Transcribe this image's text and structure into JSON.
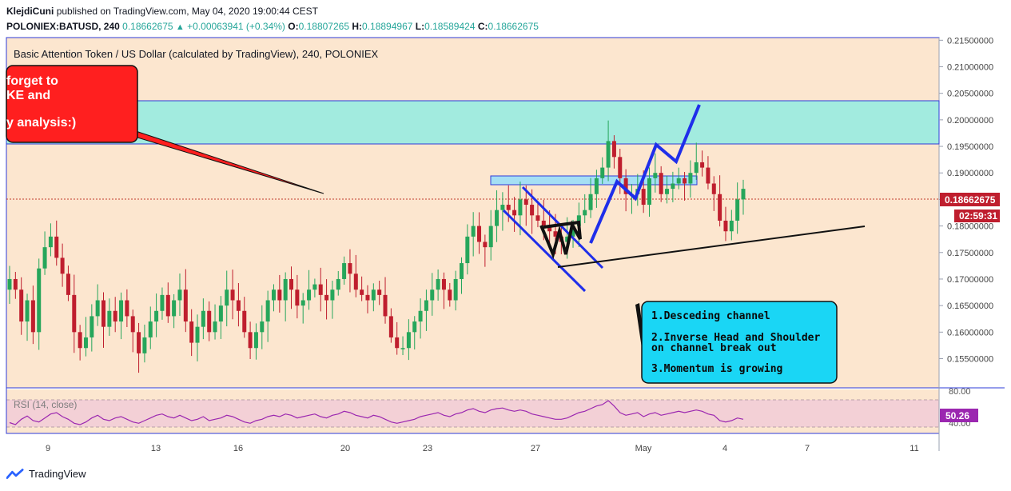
{
  "header": {
    "publisher": "KlejdiCuni",
    "published_text": "published on TradingView.com, May 04, 2020 19:00:44 CEST",
    "symbol": "POLONIEX:BATUSD, 240",
    "last": "0.18662675",
    "change": "+0.00063941 (+0.34%)",
    "o_label": "O:",
    "o": "0.18807265",
    "h_label": "H:",
    "h": "0.18894967",
    "l_label": "L:",
    "l": "0.18589424",
    "c_label": "C:",
    "c": "0.18662675"
  },
  "chart_data": {
    "type": "candlestick",
    "title": "Basic Attention Token / US Dollar (calculated by TradingView), 240, POLONIEX",
    "x_ticks": [
      "9",
      "13",
      "16",
      "20",
      "23",
      "27",
      "May",
      "4",
      "7",
      "11"
    ],
    "y_ticks": [
      "0.15500000",
      "0.16000000",
      "0.16500000",
      "0.17000000",
      "0.17500000",
      "0.18000000",
      "0.18500000",
      "0.19000000",
      "0.19500000",
      "0.20000000",
      "0.20500000",
      "0.21000000",
      "0.21500000"
    ],
    "ylim": [
      0.1495,
      0.2155
    ],
    "last_price_label": "0.18662675",
    "countdown_label": "02:59:31",
    "close_series": [
      0.17,
      0.168,
      0.162,
      0.166,
      0.16,
      0.172,
      0.176,
      0.178,
      0.174,
      0.171,
      0.167,
      0.16,
      0.157,
      0.159,
      0.163,
      0.166,
      0.161,
      0.164,
      0.162,
      0.166,
      0.163,
      0.16,
      0.156,
      0.159,
      0.162,
      0.164,
      0.167,
      0.163,
      0.166,
      0.168,
      0.162,
      0.158,
      0.161,
      0.164,
      0.16,
      0.162,
      0.165,
      0.168,
      0.166,
      0.164,
      0.16,
      0.157,
      0.16,
      0.162,
      0.166,
      0.168,
      0.166,
      0.17,
      0.168,
      0.165,
      0.166,
      0.168,
      0.169,
      0.167,
      0.166,
      0.168,
      0.17,
      0.173,
      0.171,
      0.168,
      0.167,
      0.166,
      0.168,
      0.167,
      0.163,
      0.159,
      0.157,
      0.157,
      0.16,
      0.162,
      0.164,
      0.166,
      0.168,
      0.17,
      0.168,
      0.166,
      0.17,
      0.173,
      0.178,
      0.18,
      0.177,
      0.176,
      0.18,
      0.183,
      0.184,
      0.183,
      0.182,
      0.185,
      0.184,
      0.182,
      0.181,
      0.18,
      0.179,
      0.178,
      0.177,
      0.178,
      0.18,
      0.182,
      0.183,
      0.186,
      0.189,
      0.191,
      0.196,
      0.193,
      0.189,
      0.186,
      0.186,
      0.187,
      0.184,
      0.189,
      0.19,
      0.186,
      0.187,
      0.188,
      0.189,
      0.188,
      0.19,
      0.192,
      0.191,
      0.188,
      0.186,
      0.181,
      0.179,
      0.181,
      0.185,
      0.187
    ],
    "rsi": {
      "label": "RSI (14, close)",
      "value_label": "50.26",
      "upper_label": "80.00",
      "lower_label": "40.00",
      "series": [
        45,
        42,
        50,
        55,
        48,
        46,
        52,
        58,
        60,
        54,
        50,
        44,
        42,
        46,
        52,
        56,
        50,
        48,
        52,
        54,
        50,
        46,
        44,
        48,
        52,
        56,
        58,
        54,
        52,
        56,
        52,
        48,
        50,
        54,
        48,
        50,
        52,
        56,
        54,
        50,
        46,
        44,
        48,
        50,
        54,
        56,
        54,
        58,
        56,
        52,
        54,
        56,
        58,
        54,
        52,
        56,
        58,
        62,
        60,
        56,
        54,
        52,
        56,
        54,
        50,
        46,
        44,
        46,
        48,
        50,
        54,
        56,
        58,
        60,
        56,
        54,
        58,
        60,
        64,
        66,
        62,
        60,
        64,
        66,
        67,
        64,
        62,
        64,
        62,
        58,
        56,
        54,
        52,
        50,
        50,
        52,
        56,
        60,
        62,
        66,
        70,
        72,
        78,
        70,
        60,
        56,
        58,
        60,
        54,
        58,
        60,
        56,
        58,
        60,
        62,
        60,
        62,
        64,
        62,
        58,
        56,
        48,
        46,
        48,
        52,
        50
      ]
    },
    "annotations": {
      "callout_box_text": [
        "1.Desceding channel",
        "2.Inverse Head and Shoulder",
        "on channel break out",
        "3.Momentum is growing"
      ],
      "red_note_text": [
        "forget  to",
        "KE and",
        "y analysis:)"
      ]
    }
  },
  "colors": {
    "background": "#fce6cf",
    "bull": "#26a65b",
    "bear": "#bf1e2e",
    "zone": "#9eeadc",
    "note_red": "#ff1f1f",
    "callout": "#1ad6f5",
    "channel": "#1f2eea",
    "rsi_line": "#9b27b0",
    "rsi_band": "#f3d0d6"
  },
  "footer": {
    "brand": "TradingView"
  }
}
